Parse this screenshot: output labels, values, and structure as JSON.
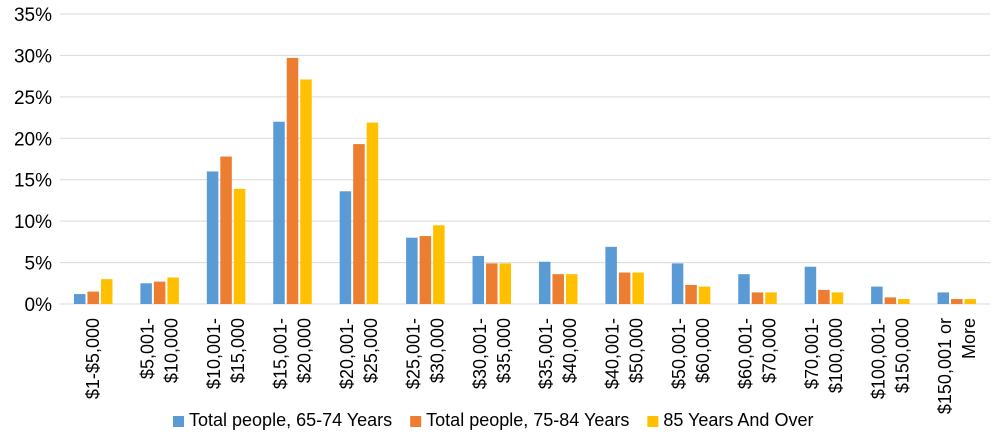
{
  "chart_data": {
    "type": "bar",
    "categories": [
      [
        "$1-$5,000"
      ],
      [
        "$5,001-",
        "$10,000"
      ],
      [
        "$10,001-",
        "$15,000"
      ],
      [
        "$15,001-",
        "$20,000"
      ],
      [
        "$20,001-",
        "$25,000"
      ],
      [
        "$25,001-",
        "$30,000"
      ],
      [
        "$30,001-",
        "$35,000"
      ],
      [
        "$35,001-",
        "$40,000"
      ],
      [
        "$40,001-",
        "$50,000"
      ],
      [
        "$50,001-",
        "$60,000"
      ],
      [
        "$60,001-",
        "$70,000"
      ],
      [
        "$70,001-",
        "$100,000"
      ],
      [
        "$100,001-",
        "$150,000"
      ],
      [
        "$150,001 or",
        "More"
      ]
    ],
    "series": [
      {
        "name": "Total people, 65-74 Years",
        "color": "#5b9bd5",
        "values": [
          1.2,
          2.5,
          16.0,
          22.0,
          13.6,
          8.0,
          5.8,
          5.1,
          6.9,
          4.9,
          3.6,
          4.5,
          2.1,
          1.4
        ]
      },
      {
        "name": "Total people, 75-84 Years",
        "color": "#ed7d31",
        "values": [
          1.5,
          2.7,
          17.8,
          29.7,
          19.3,
          8.2,
          4.9,
          3.6,
          3.8,
          2.3,
          1.4,
          1.7,
          0.8,
          0.6
        ]
      },
      {
        "name": "85 Years And Over",
        "color": "#ffc000",
        "values": [
          3.0,
          3.2,
          13.9,
          27.1,
          21.9,
          9.5,
          4.9,
          3.6,
          3.8,
          2.1,
          1.4,
          1.4,
          0.6,
          0.6
        ]
      }
    ],
    "yticks": [
      "0%",
      "5%",
      "10%",
      "15%",
      "20%",
      "25%",
      "30%",
      "35%"
    ],
    "ylim": [
      0,
      35
    ],
    "grid": true,
    "legend_position": "bottom"
  }
}
